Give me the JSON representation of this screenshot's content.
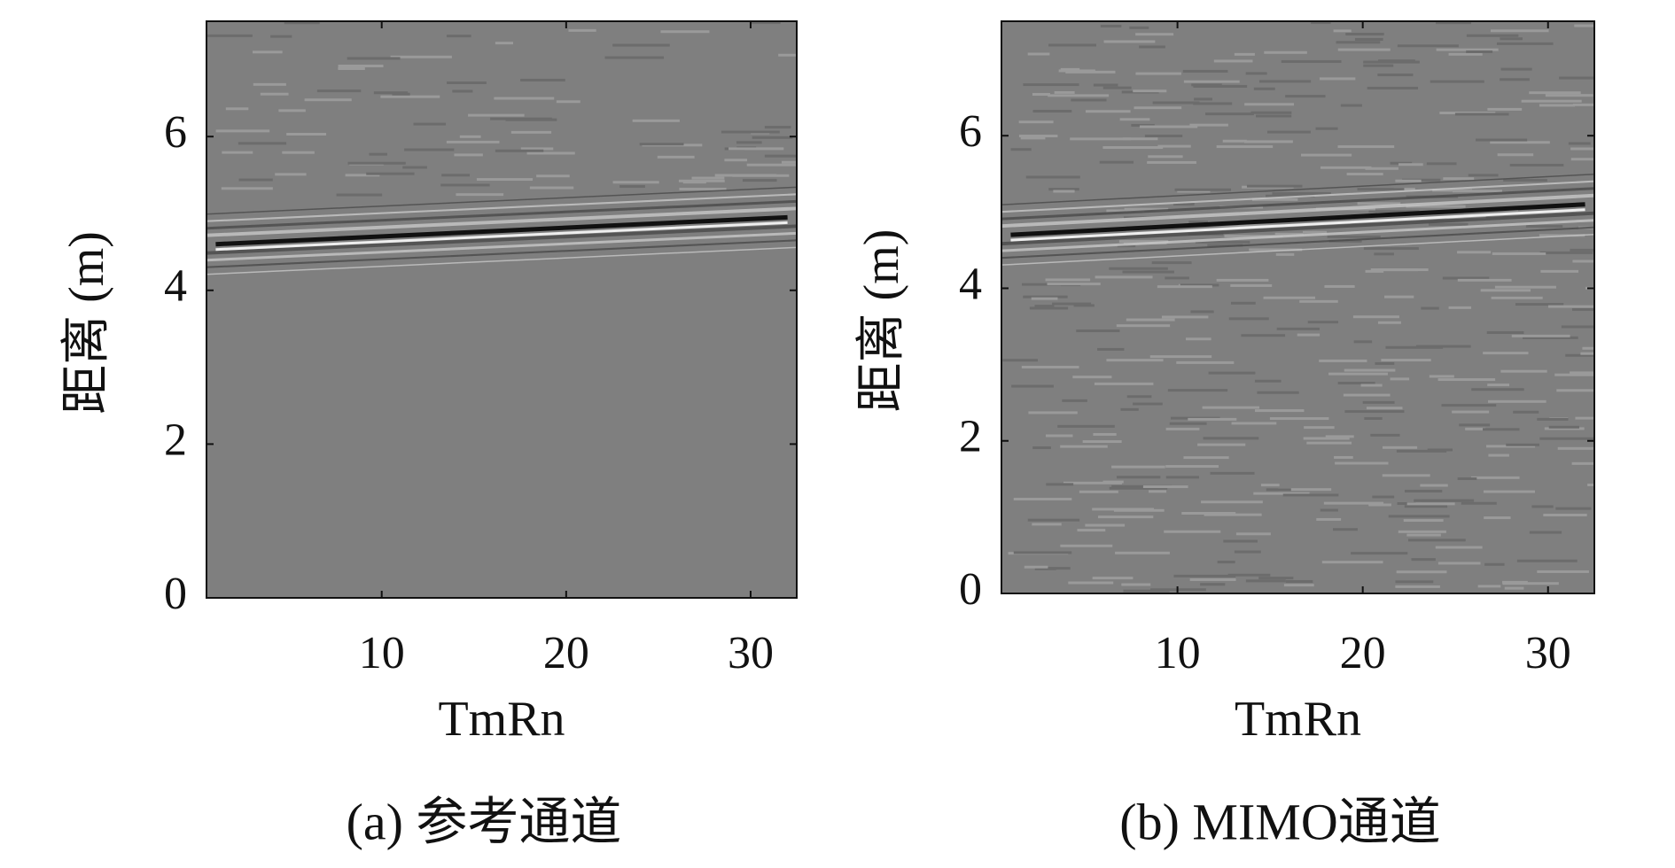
{
  "chart_data": [
    {
      "type": "image",
      "caption": "(a) 参考通道",
      "xlabel": "TmRn",
      "ylabel": "距离 (m)",
      "xlim": [
        0.5,
        32.5
      ],
      "ylim": [
        0,
        7.5
      ],
      "xticks": [
        10,
        20,
        30
      ],
      "yticks": [
        0,
        2,
        4,
        6
      ],
      "x": [
        1,
        32
      ],
      "values": [
        4.6,
        4.95
      ]
    },
    {
      "type": "image",
      "caption": "(b) MIMO通道",
      "xlabel": "TmRn",
      "ylabel": "距离 (m)",
      "xlim": [
        0.5,
        32.5
      ],
      "ylim": [
        0,
        7.5
      ],
      "xticks": [
        10,
        20,
        30
      ],
      "yticks": [
        0,
        2,
        4,
        6
      ],
      "x": [
        1,
        32
      ],
      "values": [
        4.7,
        5.1
      ]
    }
  ]
}
